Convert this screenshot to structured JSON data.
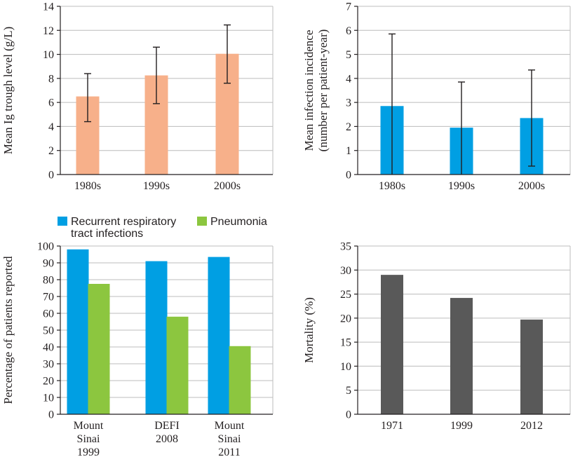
{
  "chart_data": [
    {
      "id": "ig",
      "type": "bar",
      "ylabel": [
        "Mean Ig trough level (g/L)"
      ],
      "ylim": [
        0,
        14
      ],
      "yticks": [
        0,
        2,
        4,
        6,
        8,
        10,
        12,
        14
      ],
      "grid": true,
      "categories": [
        [
          "1980s"
        ],
        [
          "1990s"
        ],
        [
          "2000s"
        ]
      ],
      "series": [
        {
          "name": "Mean Ig trough level",
          "color": "#f7b08a",
          "values": [
            6.5,
            8.25,
            10.05
          ],
          "error_low": [
            4.4,
            5.9,
            7.6
          ],
          "error_high": [
            8.4,
            10.6,
            12.45
          ]
        }
      ]
    },
    {
      "id": "infection",
      "type": "bar",
      "ylabel": [
        "Mean infection incidence",
        "(number per patient-year)"
      ],
      "ylim": [
        0,
        7
      ],
      "yticks": [
        0,
        1,
        2,
        3,
        4,
        5,
        6,
        7
      ],
      "grid": true,
      "categories": [
        [
          "1980s"
        ],
        [
          "1990s"
        ],
        [
          "2000s"
        ]
      ],
      "series": [
        {
          "name": "Mean infection incidence",
          "color": "#009fe3",
          "values": [
            2.85,
            1.95,
            2.35
          ],
          "error_low": [
            0,
            0,
            0.35
          ],
          "error_high": [
            5.85,
            3.85,
            4.35
          ]
        }
      ]
    },
    {
      "id": "percent",
      "type": "bar",
      "ylabel": [
        "Percentage of patients reported"
      ],
      "ylim": [
        0,
        100
      ],
      "yticks": [
        0,
        10,
        20,
        30,
        40,
        50,
        60,
        70,
        80,
        90,
        100
      ],
      "grid": true,
      "categories": [
        [
          "Mount",
          "Sinai",
          "1999"
        ],
        [
          "DEFI",
          "2008"
        ],
        [
          "Mount",
          "Sinai",
          "2011"
        ]
      ],
      "legend": [
        {
          "label": [
            "Recurrent respiratory",
            "tract infections"
          ],
          "color": "#009fe3"
        },
        {
          "label": [
            "Pneumonia"
          ],
          "color": "#8cc63f"
        }
      ],
      "series": [
        {
          "name": "Recurrent respiratory tract infections",
          "color": "#009fe3",
          "values": [
            98,
            91,
            93.5
          ]
        },
        {
          "name": "Pneumonia",
          "color": "#8cc63f",
          "values": [
            77.5,
            58,
            40.5
          ]
        }
      ]
    },
    {
      "id": "mortality",
      "type": "bar",
      "ylabel": [
        "Mortality (%)"
      ],
      "ylim": [
        0,
        35
      ],
      "yticks": [
        0,
        5,
        10,
        15,
        20,
        25,
        30,
        35
      ],
      "grid": true,
      "categories": [
        [
          "1971"
        ],
        [
          "1999"
        ],
        [
          "2012"
        ]
      ],
      "series": [
        {
          "name": "Mortality",
          "color": "#595959",
          "values": [
            29,
            24.2,
            19.7
          ]
        }
      ]
    }
  ]
}
